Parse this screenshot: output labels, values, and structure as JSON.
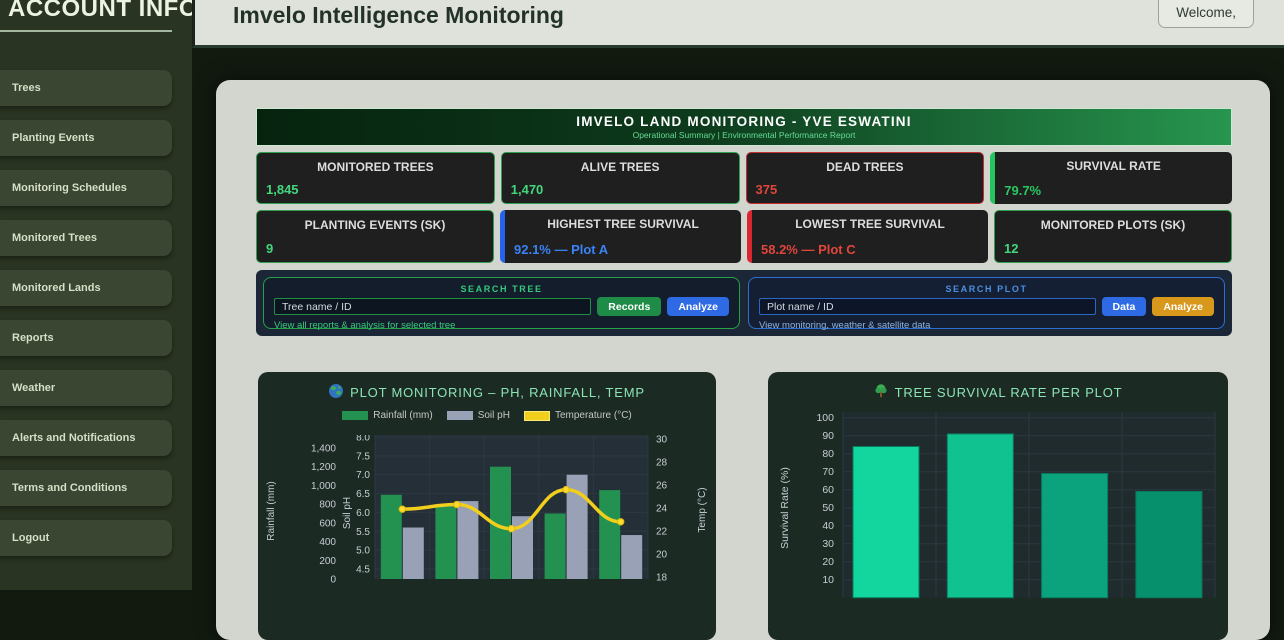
{
  "sidebar": {
    "title": "ACCOUNT INFO",
    "items": [
      "Trees",
      "Planting Events",
      "Monitoring Schedules",
      "Monitored Trees",
      "Monitored Lands",
      "Reports",
      "Weather",
      "Alerts and Notifications",
      "Terms and Conditions",
      "Logout"
    ]
  },
  "header": {
    "title": "Imvelo Intelligence Monitoring",
    "welcome_label": "Welcome,"
  },
  "banner": {
    "title": "IMVELO LAND MONITORING - YVE ESWATINI",
    "subtitle": "Operational Summary | Environmental Performance Report"
  },
  "stats": [
    {
      "label": "MONITORED TREES",
      "value": "1,845",
      "accent": "border-green",
      "value_color": "#42d77d"
    },
    {
      "label": "ALIVE TREES",
      "value": "1,470",
      "accent": "border-green",
      "value_color": "#42d77d"
    },
    {
      "label": "DEAD TREES",
      "value": "375",
      "accent": "border-red",
      "value_color": "#e0463c"
    },
    {
      "label": "SURVIVAL RATE",
      "value": "79.7%",
      "accent": "strip-green",
      "value_color": "#27c860"
    },
    {
      "label": "PLANTING EVENTS (SK)",
      "value": "9",
      "accent": "border-green",
      "value_color": "#42d77d"
    },
    {
      "label": "HIGHEST TREE SURVIVAL",
      "value": "92.1% — Plot A",
      "accent": "strip-blue",
      "value_color": "#3b82f6"
    },
    {
      "label": "LOWEST TREE SURVIVAL",
      "value": "58.2% — Plot C",
      "accent": "strip-red",
      "value_color": "#e0463c"
    },
    {
      "label": "MONITORED PLOTS (SK)",
      "value": "12",
      "accent": "border-green",
      "value_color": "#42d77d"
    }
  ],
  "search_tree": {
    "title": "SEARCH TREE",
    "placeholder": "Tree name / ID",
    "records_label": "Records",
    "analyze_label": "Analyze",
    "link": "View all reports & analysis for selected tree"
  },
  "search_plot": {
    "title": "SEARCH PLOT",
    "placeholder": "Plot name / ID",
    "data_label": "Data",
    "analyze_label": "Analyze",
    "note": "View monitoring, weather & satellite data"
  },
  "icons": {
    "chart1_icon": "globe-icon",
    "chart2_icon": "tree-icon"
  },
  "chart_data": [
    {
      "type": "bar",
      "subtype": "bar+line combo, dual bar series with line overlay",
      "title": "PLOT MONITORING – PH, RAINFALL, TEMP",
      "legend": [
        "Rainfall (mm)",
        "Soil pH",
        "Temperature (°C)"
      ],
      "legend_colors": [
        "#23914f",
        "#99a1b6",
        "#f2cf1d"
      ],
      "x_tick_labels_visible": false,
      "n_groups": 5,
      "series": [
        {
          "name": "Rainfall (mm)",
          "type": "bar",
          "axis": "rainfall",
          "color": "#23914f",
          "values": [
            900,
            780,
            1200,
            700,
            950
          ]
        },
        {
          "name": "Soil pH",
          "type": "bar",
          "axis": "ph",
          "color": "#99a1b6",
          "values": [
            5.6,
            6.3,
            5.9,
            7.0,
            5.4
          ]
        },
        {
          "name": "Temperature (°C)",
          "type": "line",
          "axis": "temp",
          "color": "#f2cf1d",
          "values": [
            23.9,
            24.3,
            22.2,
            25.6,
            22.8
          ]
        }
      ],
      "axes": {
        "rainfall": {
          "label": "Rainfall (mm)",
          "min": 0,
          "max": 1400,
          "ticks": [
            "0",
            "200",
            "400",
            "600",
            "800",
            "1,000",
            "1,200",
            "1,400"
          ]
        },
        "ph": {
          "label": "Soil pH",
          "min": 4.5,
          "max": 8.0,
          "ticks": [
            "4.5",
            "5.0",
            "5.5",
            "6.0",
            "6.5",
            "7.0",
            "7.5",
            "8.0"
          ]
        },
        "temp": {
          "label": "Temp (°C)",
          "min": 18,
          "max": 30,
          "ticks": [
            "18",
            "20",
            "22",
            "24",
            "26",
            "28",
            "30"
          ]
        }
      },
      "grid": true,
      "legend_position": "top"
    },
    {
      "type": "bar",
      "title": "TREE SURVIVAL RATE PER PLOT",
      "ylabel": "Survival Rate (%)",
      "ylim": [
        0,
        100
      ],
      "yticks": [
        "10",
        "20",
        "30",
        "40",
        "50",
        "60",
        "70",
        "80",
        "90",
        "100"
      ],
      "values": [
        84,
        91,
        69,
        59
      ],
      "bar_colors": [
        "#12d69e",
        "#10c290",
        "#0ba37d",
        "#07906c"
      ],
      "x_tick_labels_visible": false,
      "grid": true
    }
  ],
  "colors": {
    "sidebar_bg": "#2a3422",
    "sidebar_item_bg": "#3a4631",
    "header_bg": "#dfe2da",
    "page_bg": "#121a10",
    "panel_bg": "#d2d6ce",
    "stat_card_bg": "#1f1f1f",
    "accent_green": "#2f9e4f",
    "accent_red": "#c03030",
    "accent_blue": "#2563eb",
    "accent_amber": "#d8981b",
    "search_bg": "#1b2637",
    "chart_card_bg": "#1b2a22",
    "banner_gradient": [
      "#06230e",
      "#27964f"
    ]
  }
}
